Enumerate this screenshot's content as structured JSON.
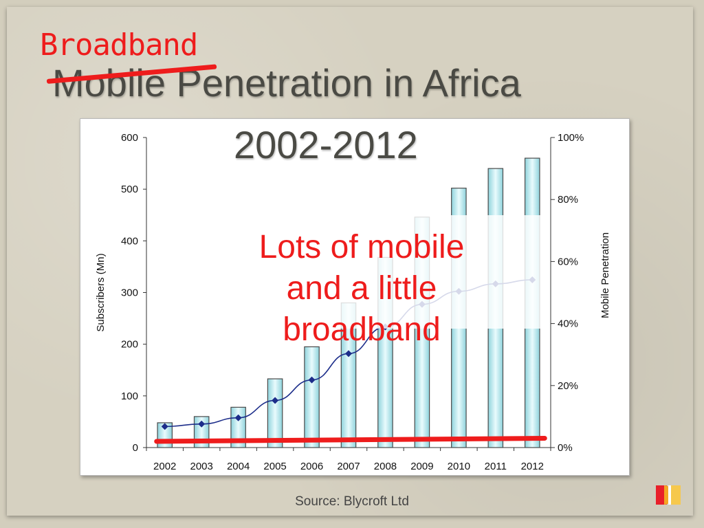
{
  "slide": {
    "title_line1": "Mobile Penetration in Africa",
    "title_line2": "2002-2012",
    "handwritten_note": "Broadband",
    "annotation_lines": [
      "Lots of mobile",
      "and a little",
      "broadband"
    ],
    "source": "Source: Blycroft Ltd"
  },
  "colors": {
    "annotation_red": "#ee1c1c",
    "bar_fill": "#bfeaf0",
    "line_color": "#1c2d8a",
    "title_gray": "#4a4a44"
  },
  "chart_data": {
    "type": "bar",
    "categories": [
      "2002",
      "2003",
      "2004",
      "2005",
      "2006",
      "2007",
      "2008",
      "2009",
      "2010",
      "2011",
      "2012"
    ],
    "series": [
      {
        "axis": "left",
        "type": "bar",
        "values": [
          48,
          60,
          78,
          133,
          195,
          280,
          368,
          446,
          502,
          540,
          560
        ]
      },
      {
        "axis": "right",
        "type": "line",
        "values": [
          6.8,
          7.6,
          9.6,
          15.2,
          21.8,
          30.3,
          38.9,
          46.2,
          50.4,
          52.8,
          54.1
        ]
      }
    ],
    "ylabel": "Subscribers (Mn)",
    "y2label": "Mobile Penetration",
    "ylim": [
      0,
      600
    ],
    "y2lim": [
      0,
      100
    ],
    "yticks": [
      "0",
      "100",
      "200",
      "300",
      "400",
      "500",
      "600"
    ],
    "y2ticks": [
      "0%",
      "20%",
      "40%",
      "60%",
      "80%",
      "100%"
    ],
    "broadband_line_values": [
      2,
      3
    ],
    "grid": false,
    "legend": "none"
  }
}
